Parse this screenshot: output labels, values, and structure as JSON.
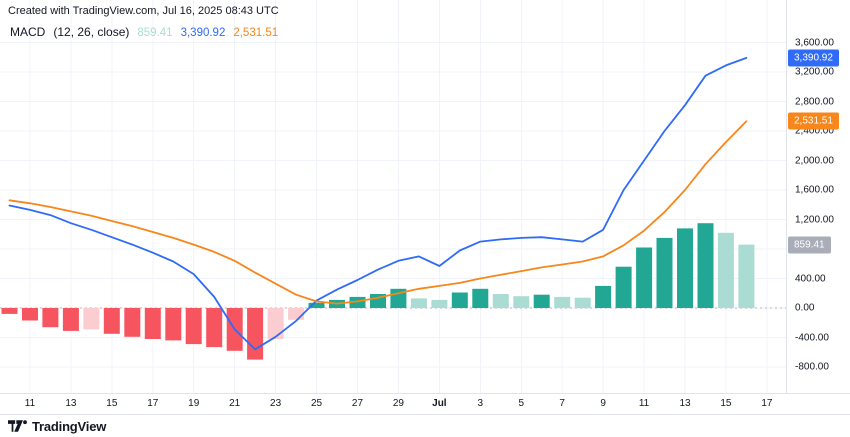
{
  "attribution": "Created with TradingView.com, Jul 16, 2025 08:43 UTC",
  "legend": {
    "title": "MACD",
    "params": "(12, 26, close)",
    "values": {
      "histogram": "859.41",
      "macd": "3,390.92",
      "signal": "2,531.51"
    }
  },
  "footer": {
    "brand": "TradingView"
  },
  "colors": {
    "macd_line": "#2f6bf6",
    "signal_line": "#f7861b",
    "hist_up": "#22a794",
    "hist_up_light": "#aadcd3",
    "hist_down": "#f6545f",
    "hist_down_light": "#fbccd0",
    "badge_macd": "#2f6bf6",
    "badge_signal": "#f7861b",
    "badge_hist": "#a8adb8",
    "grid": "#f0f3fa",
    "zero_line": "#b2b5be",
    "axis_text": "#131722"
  },
  "y_axis": {
    "labels": [
      {
        "value": 3600,
        "text": "3,600.00"
      },
      {
        "value": 3200,
        "text": "3,200.00"
      },
      {
        "value": 2800,
        "text": "2,800.00"
      },
      {
        "value": 2400,
        "text": "2,400.00"
      },
      {
        "value": 2000,
        "text": "2,000.00"
      },
      {
        "value": 1600,
        "text": "1,600.00"
      },
      {
        "value": 1200,
        "text": "1,200.00"
      },
      {
        "value": 400,
        "text": "400.00"
      },
      {
        "value": 0,
        "text": "0.00"
      },
      {
        "value": -400,
        "text": "-400.00"
      },
      {
        "value": -800,
        "text": "-800.00"
      }
    ],
    "badges": [
      {
        "value": 3390.92,
        "text": "3,390.92",
        "color_key": "badge_macd"
      },
      {
        "value": 2531.51,
        "text": "2,531.51",
        "color_key": "badge_signal"
      },
      {
        "value": 859.41,
        "text": "859.41",
        "color_key": "badge_hist"
      }
    ]
  },
  "x_axis": {
    "labels": [
      {
        "text": "11",
        "index": 1,
        "bold": false
      },
      {
        "text": "13",
        "index": 3,
        "bold": false
      },
      {
        "text": "15",
        "index": 5,
        "bold": false
      },
      {
        "text": "17",
        "index": 7,
        "bold": false
      },
      {
        "text": "19",
        "index": 9,
        "bold": false
      },
      {
        "text": "21",
        "index": 11,
        "bold": false
      },
      {
        "text": "23",
        "index": 13,
        "bold": false
      },
      {
        "text": "25",
        "index": 15,
        "bold": false
      },
      {
        "text": "27",
        "index": 17,
        "bold": false
      },
      {
        "text": "29",
        "index": 19,
        "bold": false
      },
      {
        "text": "Jul",
        "index": 21,
        "bold": true
      },
      {
        "text": "3",
        "index": 23,
        "bold": false
      },
      {
        "text": "5",
        "index": 25,
        "bold": false
      },
      {
        "text": "7",
        "index": 27,
        "bold": false
      },
      {
        "text": "9",
        "index": 29,
        "bold": false
      },
      {
        "text": "11",
        "index": 31,
        "bold": false
      },
      {
        "text": "13",
        "index": 33,
        "bold": false
      },
      {
        "text": "15",
        "index": 35,
        "bold": false
      },
      {
        "text": "17",
        "index": 37,
        "bold": false
      }
    ]
  },
  "chart_data": {
    "type": "bar",
    "title": "MACD (12, 26, close)",
    "subtitle": "MACD indicator panel: histogram with MACD and signal lines",
    "x": [
      "Jun 10",
      "Jun 11",
      "Jun 12",
      "Jun 13",
      "Jun 14",
      "Jun 15",
      "Jun 16",
      "Jun 17",
      "Jun 18",
      "Jun 19",
      "Jun 20",
      "Jun 21",
      "Jun 22",
      "Jun 23",
      "Jun 24",
      "Jun 25",
      "Jun 26",
      "Jun 27",
      "Jun 28",
      "Jun 29",
      "Jun 30",
      "Jul 1",
      "Jul 2",
      "Jul 3",
      "Jul 4",
      "Jul 5",
      "Jul 6",
      "Jul 7",
      "Jul 8",
      "Jul 9",
      "Jul 10",
      "Jul 11",
      "Jul 12",
      "Jul 13",
      "Jul 14",
      "Jul 15",
      "Jul 16"
    ],
    "histogram": [
      -80,
      -170,
      -260,
      -310,
      -290,
      -350,
      -390,
      -420,
      -440,
      -490,
      -530,
      -580,
      -700,
      -420,
      -160,
      70,
      110,
      150,
      190,
      260,
      130,
      110,
      210,
      260,
      190,
      160,
      180,
      150,
      140,
      300,
      560,
      820,
      950,
      1080,
      1150,
      1020,
      859.41
    ],
    "histogram_colors": [
      "down",
      "down",
      "down",
      "down",
      "down_light",
      "down",
      "down",
      "down",
      "down",
      "down",
      "down",
      "down",
      "down",
      "down_light",
      "down_light",
      "up",
      "up",
      "up",
      "up",
      "up",
      "up_light",
      "up_light",
      "up",
      "up",
      "up_light",
      "up_light",
      "up",
      "up_light",
      "up_light",
      "up",
      "up",
      "up",
      "up",
      "up",
      "up",
      "up_light",
      "up_light"
    ],
    "series": [
      {
        "name": "MACD line",
        "type": "line",
        "color_key": "macd_line",
        "values": [
          1390,
          1330,
          1260,
          1150,
          1060,
          960,
          860,
          750,
          630,
          460,
          150,
          -290,
          -560,
          -390,
          -175,
          100,
          250,
          380,
          520,
          640,
          700,
          570,
          780,
          900,
          930,
          950,
          960,
          930,
          900,
          1060,
          1600,
          2000,
          2400,
          2750,
          3150,
          3290,
          3390.92
        ]
      },
      {
        "name": "Signal line",
        "type": "line",
        "color_key": "signal_line",
        "values": [
          1460,
          1420,
          1370,
          1310,
          1250,
          1180,
          1110,
          1030,
          950,
          860,
          760,
          640,
          480,
          330,
          180,
          90,
          60,
          90,
          140,
          200,
          260,
          300,
          340,
          400,
          450,
          500,
          550,
          590,
          630,
          700,
          850,
          1050,
          1300,
          1600,
          1950,
          2250,
          2531.51
        ]
      }
    ],
    "y_grid": [
      3600,
      3200,
      2800,
      2400,
      2000,
      1600,
      1200,
      800,
      400,
      0,
      -400,
      -800
    ],
    "ylim": [
      -900,
      3700
    ],
    "zero_line": 0,
    "grid": true,
    "legend_position": "top-left",
    "last_values": {
      "histogram": 859.41,
      "macd": 3390.92,
      "signal": 2531.51
    }
  }
}
